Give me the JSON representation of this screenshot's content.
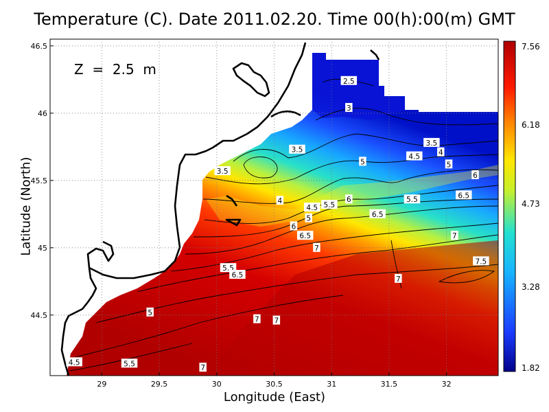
{
  "title": "Temperature (C). Date 2011.02.20. Time 00(h):00(m) GMT",
  "depth_label": "Z  =  2.5  m",
  "axes": {
    "xlabel": "Longitude (East)",
    "ylabel": "Latitude (North)",
    "xticks": [
      "29",
      "29.5",
      "30",
      "30.5",
      "31",
      "31.5",
      "32"
    ],
    "yticks": [
      "46.5",
      "46",
      "45.5",
      "45",
      "44.5"
    ],
    "xlim": [
      28.55,
      32.45
    ],
    "ylim": [
      44.05,
      46.55
    ]
  },
  "colorbar": {
    "ticks": [
      "7.56",
      "6.18",
      "4.73",
      "3.28",
      "1.82"
    ],
    "range": [
      1.82,
      7.56
    ],
    "colors": [
      "#00008b",
      "#1a3cff",
      "#16b4ff",
      "#22e0d0",
      "#c8f02a",
      "#ffe600",
      "#ff8000",
      "#ff1a00",
      "#cc0000",
      "#b00000"
    ]
  },
  "contour_labels": [
    {
      "text": "2.5",
      "lon": 31.15,
      "lat": 46.24
    },
    {
      "text": "3",
      "lon": 31.15,
      "lat": 46.04
    },
    {
      "text": "3.5",
      "lon": 31.87,
      "lat": 45.78
    },
    {
      "text": "4",
      "lon": 31.95,
      "lat": 45.71
    },
    {
      "text": "4.5",
      "lon": 31.72,
      "lat": 45.68
    },
    {
      "text": "5",
      "lon": 32.02,
      "lat": 45.62
    },
    {
      "text": "6",
      "lon": 32.25,
      "lat": 45.54
    },
    {
      "text": "6.5",
      "lon": 32.15,
      "lat": 45.39
    },
    {
      "text": "3.5",
      "lon": 30.7,
      "lat": 45.73
    },
    {
      "text": "3.5",
      "lon": 30.05,
      "lat": 45.57
    },
    {
      "text": "5",
      "lon": 31.27,
      "lat": 45.64
    },
    {
      "text": "4",
      "lon": 30.55,
      "lat": 45.35
    },
    {
      "text": "4.5",
      "lon": 30.83,
      "lat": 45.3
    },
    {
      "text": "5",
      "lon": 30.8,
      "lat": 45.22
    },
    {
      "text": "5.5",
      "lon": 30.98,
      "lat": 45.32
    },
    {
      "text": "6",
      "lon": 31.15,
      "lat": 45.36
    },
    {
      "text": "5.5",
      "lon": 31.7,
      "lat": 45.36
    },
    {
      "text": "6.5",
      "lon": 31.4,
      "lat": 45.25
    },
    {
      "text": "6",
      "lon": 30.67,
      "lat": 45.16
    },
    {
      "text": "6.5",
      "lon": 30.77,
      "lat": 45.09
    },
    {
      "text": "7",
      "lon": 30.87,
      "lat": 45.0
    },
    {
      "text": "7",
      "lon": 32.07,
      "lat": 45.09
    },
    {
      "text": "7.5",
      "lon": 32.3,
      "lat": 44.9
    },
    {
      "text": "7",
      "lon": 31.58,
      "lat": 44.77
    },
    {
      "text": "5.5",
      "lon": 30.1,
      "lat": 44.85
    },
    {
      "text": "6.5",
      "lon": 30.18,
      "lat": 44.8
    },
    {
      "text": "5",
      "lon": 29.42,
      "lat": 44.52
    },
    {
      "text": "7",
      "lon": 30.35,
      "lat": 44.47
    },
    {
      "text": "7",
      "lon": 30.52,
      "lat": 44.46
    },
    {
      "text": "4.5",
      "lon": 28.76,
      "lat": 44.15
    },
    {
      "text": "5.5",
      "lon": 29.24,
      "lat": 44.14
    },
    {
      "text": "7",
      "lon": 29.88,
      "lat": 44.11
    }
  ]
}
